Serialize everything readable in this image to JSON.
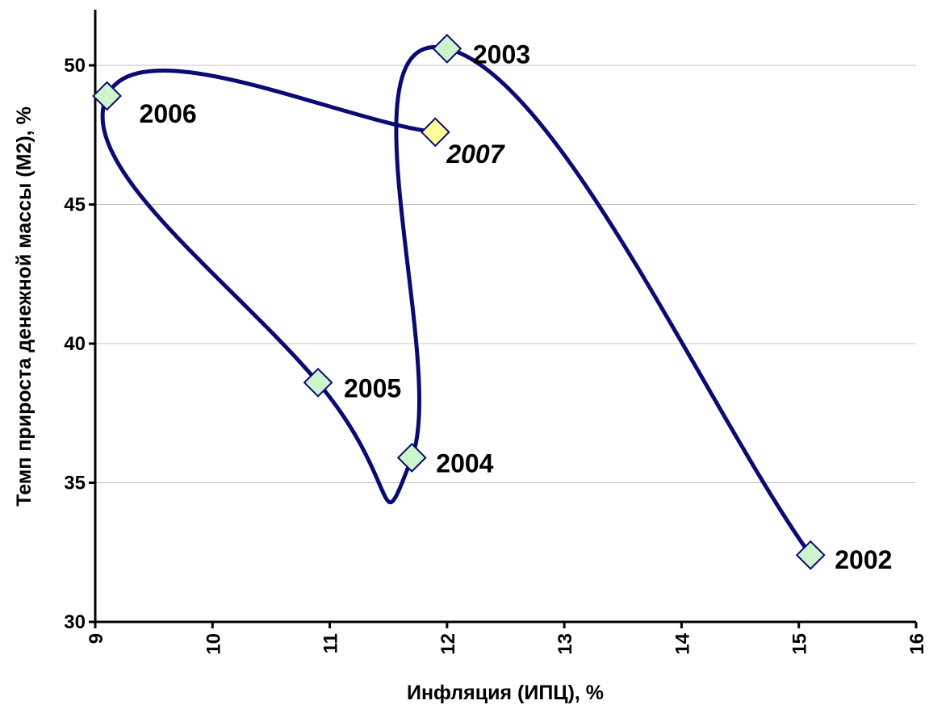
{
  "chart_data": {
    "type": "scatter",
    "connected": "smooth-line",
    "title": "",
    "xlabel": "Инфляция (ИПЦ), %",
    "ylabel": "Темп прироста денежной массы (М2), %",
    "xlim": [
      9,
      16
    ],
    "ylim": [
      30,
      52
    ],
    "x_ticks": [
      9,
      10,
      11,
      12,
      13,
      14,
      15,
      16
    ],
    "y_ticks": [
      30,
      35,
      40,
      45,
      50
    ],
    "x_tick_labels": [
      "9",
      "10",
      "11",
      "12",
      "13",
      "14",
      "15",
      "16"
    ],
    "y_tick_labels": [
      "30",
      "35",
      "40",
      "45",
      "50"
    ],
    "grid": "horizontal",
    "legend": "none",
    "series": [
      {
        "points": [
          {
            "label": "2002",
            "x": 15.1,
            "y": 32.4
          },
          {
            "label": "2003",
            "x": 12.0,
            "y": 50.6
          },
          {
            "label": "2004",
            "x": 11.7,
            "y": 35.9
          },
          {
            "label": "2005",
            "x": 10.9,
            "y": 38.6
          },
          {
            "label": "2006",
            "x": 9.1,
            "y": 48.9
          },
          {
            "label": "2007",
            "x": 11.9,
            "y": 47.6,
            "highlight": true
          }
        ]
      }
    ],
    "colors": {
      "line": "#0a0a73",
      "marker_fill": "#ccf5cc",
      "marker_fill_highlight": "#ffff99",
      "marker_stroke": "#0a0a73",
      "highlight_label": "#e00000",
      "gridline": "#c0c0c0",
      "axis": "#000000"
    }
  }
}
